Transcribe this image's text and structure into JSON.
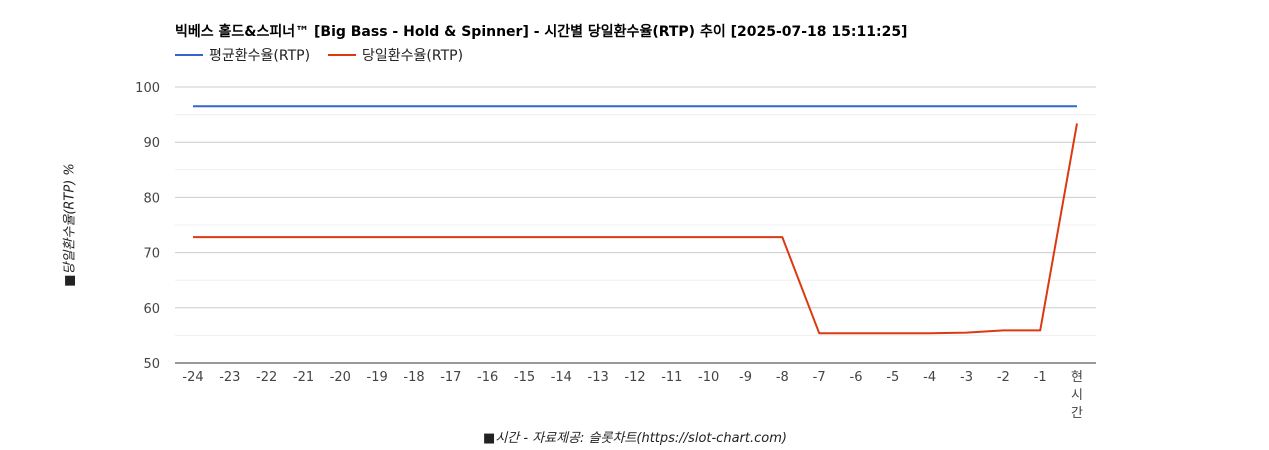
{
  "chart_data": {
    "type": "line",
    "title": "빅베스 홀드&스피너™ [Big Bass - Hold & Spinner] - 시간별 당일환수율(RTP) 추이 [2025-07-18 15:11:25]",
    "xlabel": "■시간 - 자료제공: 슬롯차트(https://slot-chart.com)",
    "ylabel": "■당일환수율(RTP) %",
    "categories": [
      "-24",
      "-23",
      "-22",
      "-21",
      "-20",
      "-19",
      "-18",
      "-17",
      "-16",
      "-15",
      "-14",
      "-13",
      "-12",
      "-11",
      "-10",
      "-9",
      "-8",
      "-7",
      "-6",
      "-5",
      "-4",
      "-3",
      "-2",
      "-1",
      "현\n시\n간"
    ],
    "ylim": [
      50,
      100
    ],
    "yticks": [
      50,
      60,
      70,
      80,
      90,
      100
    ],
    "grid": true,
    "legend_position": "top-left",
    "series": [
      {
        "name": "평균환수율(RTP)",
        "color": "#3366cc",
        "values": [
          96.5,
          96.5,
          96.5,
          96.5,
          96.5,
          96.5,
          96.5,
          96.5,
          96.5,
          96.5,
          96.5,
          96.5,
          96.5,
          96.5,
          96.5,
          96.5,
          96.5,
          96.5,
          96.5,
          96.5,
          96.5,
          96.5,
          96.5,
          96.5,
          96.5
        ]
      },
      {
        "name": "당일환수율(RTP)",
        "color": "#dc3912",
        "values": [
          72.8,
          72.8,
          72.8,
          72.8,
          72.8,
          72.8,
          72.8,
          72.8,
          72.8,
          72.8,
          72.8,
          72.8,
          72.8,
          72.8,
          72.8,
          72.8,
          72.8,
          55.4,
          55.4,
          55.4,
          55.4,
          55.5,
          55.9,
          55.9,
          93.4
        ]
      }
    ]
  }
}
